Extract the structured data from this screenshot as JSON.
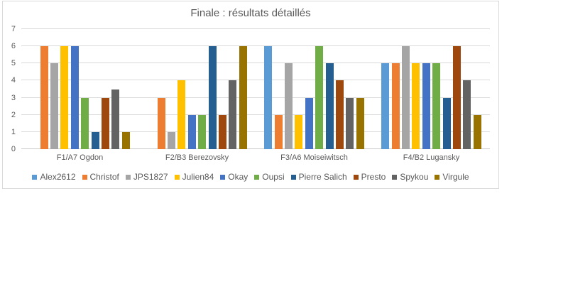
{
  "colors": {
    "text": "#595959",
    "grid": "#D9D9D9",
    "axis": "#C9C9C9",
    "frame_border": "#D9D9D9",
    "background": "#FFFFFF"
  },
  "chart_data": {
    "type": "bar",
    "title": "Finale : résultats détaillés",
    "categories": [
      "F1/A7 Ogdon",
      "F2/B3 Berezovsky",
      "F3/A6 Moiseiwitsch",
      "F4/B2 Lugansky"
    ],
    "series": [
      {
        "name": "Alex2612",
        "color": "#5B9BD5",
        "values": [
          null,
          null,
          6,
          5
        ]
      },
      {
        "name": "Christof",
        "color": "#ED7D31",
        "values": [
          6,
          3,
          2,
          5
        ]
      },
      {
        "name": "JPS1827",
        "color": "#A5A5A5",
        "values": [
          5,
          1,
          5,
          6
        ]
      },
      {
        "name": "Julien84",
        "color": "#FFC000",
        "values": [
          6,
          4,
          2,
          5
        ]
      },
      {
        "name": "Okay",
        "color": "#4472C4",
        "values": [
          6,
          2,
          3,
          5
        ]
      },
      {
        "name": "Oupsi",
        "color": "#70AD47",
        "values": [
          3,
          2,
          6,
          5
        ]
      },
      {
        "name": "Pierre Salich",
        "color": "#255E91",
        "values": [
          1,
          6,
          5,
          3
        ]
      },
      {
        "name": "Presto",
        "color": "#9E480E",
        "values": [
          3,
          2,
          4,
          6
        ]
      },
      {
        "name": "Spykou",
        "color": "#636363",
        "values": [
          3.5,
          4,
          3,
          4
        ]
      },
      {
        "name": "Virgule",
        "color": "#997300",
        "values": [
          1,
          6,
          3,
          2
        ]
      }
    ],
    "ylim": [
      0,
      7
    ],
    "yticks": [
      0,
      1,
      2,
      3,
      4,
      5,
      6,
      7
    ],
    "grid": true,
    "legend_position": "bottom",
    "xlabel": "",
    "ylabel": ""
  }
}
